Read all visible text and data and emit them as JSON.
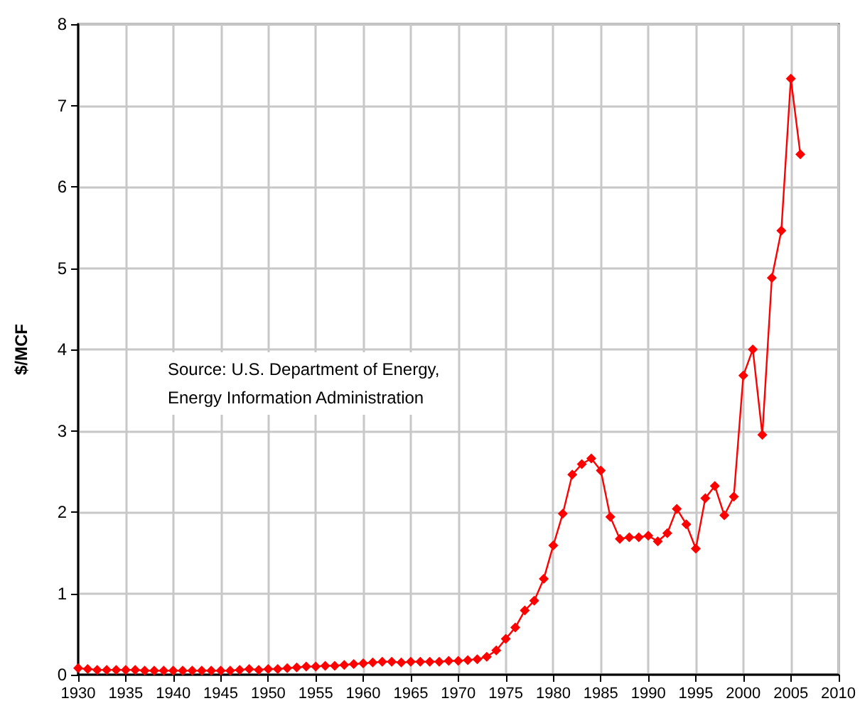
{
  "chart_data": {
    "type": "line",
    "ylabel": "$/MCF",
    "annotations": [
      "Source: U.S. Department of Energy,\nEnergy Information Administration"
    ],
    "x": [
      1930,
      1931,
      1932,
      1933,
      1934,
      1935,
      1936,
      1937,
      1938,
      1939,
      1940,
      1941,
      1942,
      1943,
      1944,
      1945,
      1946,
      1947,
      1948,
      1949,
      1950,
      1951,
      1952,
      1953,
      1954,
      1955,
      1956,
      1957,
      1958,
      1959,
      1960,
      1961,
      1962,
      1963,
      1964,
      1965,
      1966,
      1967,
      1968,
      1969,
      1970,
      1971,
      1972,
      1973,
      1974,
      1975,
      1976,
      1977,
      1978,
      1979,
      1980,
      1981,
      1982,
      1983,
      1984,
      1985,
      1986,
      1987,
      1988,
      1989,
      1990,
      1991,
      1992,
      1993,
      1994,
      1995,
      1996,
      1997,
      1998,
      1999,
      2000,
      2001,
      2002,
      2003,
      2004,
      2005,
      2006
    ],
    "series": [
      {
        "color": "#ff0000",
        "values": [
          0.08,
          0.07,
          0.06,
          0.06,
          0.06,
          0.06,
          0.06,
          0.05,
          0.05,
          0.05,
          0.05,
          0.05,
          0.05,
          0.05,
          0.05,
          0.05,
          0.05,
          0.06,
          0.07,
          0.06,
          0.07,
          0.07,
          0.08,
          0.09,
          0.1,
          0.1,
          0.11,
          0.11,
          0.12,
          0.13,
          0.14,
          0.15,
          0.16,
          0.16,
          0.15,
          0.16,
          0.16,
          0.16,
          0.16,
          0.17,
          0.17,
          0.18,
          0.19,
          0.22,
          0.3,
          0.44,
          0.58,
          0.79,
          0.91,
          1.18,
          1.59,
          1.98,
          2.46,
          2.59,
          2.66,
          2.51,
          1.94,
          1.67,
          1.69,
          1.69,
          1.71,
          1.64,
          1.74,
          2.04,
          1.85,
          1.55,
          2.17,
          2.32,
          1.96,
          2.19,
          3.68,
          4.0,
          2.95,
          4.88,
          5.46,
          7.33,
          6.4
        ]
      }
    ],
    "xlim": [
      1930,
      2010
    ],
    "xticks": [
      1930,
      1935,
      1940,
      1945,
      1950,
      1955,
      1960,
      1965,
      1970,
      1975,
      1980,
      1985,
      1990,
      1995,
      2000,
      2005,
      2010
    ],
    "ylim": [
      0,
      8
    ],
    "yticks": [
      0,
      1,
      2,
      3,
      4,
      5,
      6,
      7,
      8
    ],
    "grid": true,
    "marker": "diamond",
    "line_style": "solid"
  }
}
